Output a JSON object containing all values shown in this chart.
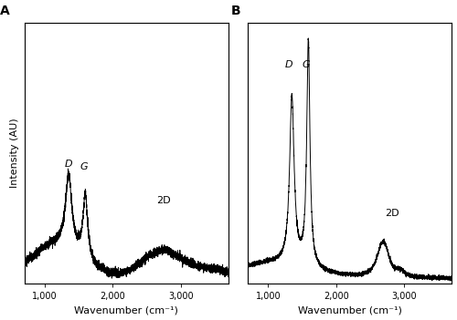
{
  "xlim": [
    700,
    3700
  ],
  "xticks": [
    1000,
    2000,
    3000
  ],
  "xticklabels": [
    "1,000",
    "2,000",
    "3,000"
  ],
  "xlabel": "Wavenumber (cm⁻¹)",
  "ylabel": "Intensity (AU)",
  "panel_A_label": "A",
  "panel_B_label": "B",
  "line_color": "#000000",
  "line_width": 0.7,
  "bg_color": "#ffffff"
}
